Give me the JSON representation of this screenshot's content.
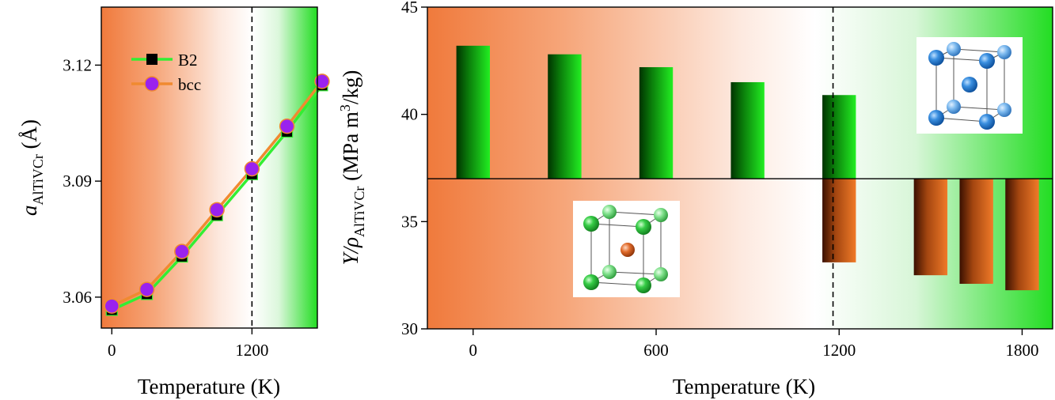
{
  "colors": {
    "orange": "#f07a3c",
    "green": "#22dd22",
    "bcc_line": "#f08a30",
    "bcc_marker": "#9a22ee",
    "b2_line": "#33ee33",
    "b2_marker": "#000000",
    "bar_green_dark": "#003300",
    "bar_green_light": "#22ee22",
    "bar_orange_dark": "#3a1000",
    "bar_orange_light": "#f07a28",
    "atom_blue": "#1a6fcc",
    "atom_green": "#2ecc40",
    "atom_orange": "#dd6a2a"
  },
  "chart_data": [
    {
      "type": "line",
      "xlabel": "Temperature (K)",
      "ylabel_main": "a",
      "ylabel_sub": "AlTiVCr",
      "ylabel_unit": "(Å)",
      "xlim": [
        -90,
        1760
      ],
      "ylim": [
        3.052,
        3.135
      ],
      "xticks": [
        0,
        1200
      ],
      "yticks": [
        3.06,
        3.09,
        3.12
      ],
      "vline_x": 1200,
      "legend_position": "top-left",
      "background": "orange-to-green horizontal gradient",
      "series": [
        {
          "name": "B2",
          "marker": "square",
          "x": [
            0,
            300,
            600,
            900,
            1200,
            1500,
            1800
          ],
          "values": [
            3.0567,
            3.0608,
            3.0705,
            3.0812,
            3.0918,
            3.1028,
            3.1148
          ]
        },
        {
          "name": "bcc",
          "marker": "circle",
          "x": [
            0,
            300,
            600,
            900,
            1200,
            1500,
            1800
          ],
          "values": [
            3.0577,
            3.062,
            3.0718,
            3.0826,
            3.0932,
            3.1042,
            3.1158
          ]
        }
      ]
    },
    {
      "type": "bar",
      "xlabel": "Temperature (K)",
      "ylabel_main": "Y/ρ",
      "ylabel_sub": "AlTiVCr",
      "ylabel_unit": "(MPa m",
      "ylabel_sup": "3",
      "ylabel_tail": "/kg)",
      "xlim": [
        -150,
        1900
      ],
      "ylim": [
        30,
        45
      ],
      "bar_base": 37,
      "xticks": [
        0,
        600,
        1200,
        1800
      ],
      "yticks": [
        30,
        35,
        40,
        45
      ],
      "vline_x": 1180,
      "background": "orange-to-green horizontal gradient",
      "bar_width": 110,
      "series": [
        {
          "structure": "bcc",
          "x": [
            0,
            300,
            600,
            900,
            1200
          ],
          "values": [
            43.2,
            42.8,
            42.2,
            41.5,
            40.9
          ]
        },
        {
          "structure": "B2",
          "x": [
            1200,
            1500,
            1650,
            1800
          ],
          "values": [
            33.1,
            32.5,
            32.1,
            31.8
          ]
        }
      ],
      "insets": [
        {
          "name": "bcc-unit-cell",
          "position": "top-right"
        },
        {
          "name": "b2-unit-cell",
          "position": "bottom-left"
        }
      ]
    }
  ]
}
